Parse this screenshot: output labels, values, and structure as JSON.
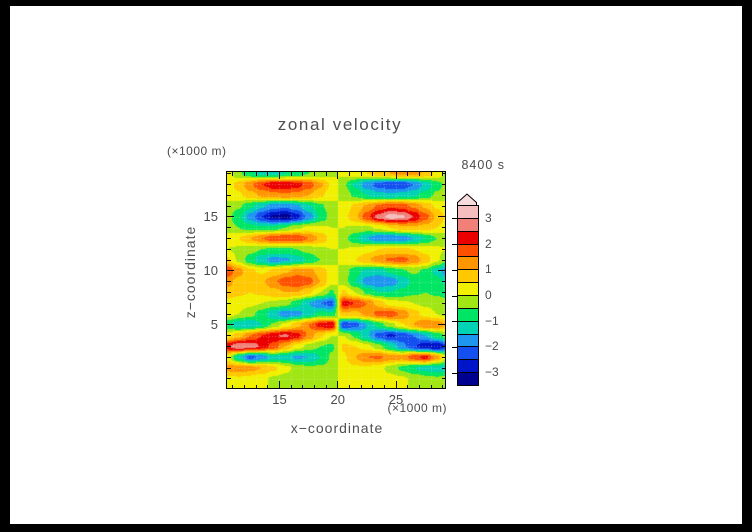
{
  "window": {
    "border_color": "#000000",
    "background": "#FFFFFF",
    "text_color": "#4A4A4A"
  },
  "time_label": "8400 s",
  "chart_data": {
    "type": "heatmap",
    "title": "zonal velocity",
    "xlabel": "x−coordinate",
    "ylabel": "z−coordinate",
    "x_unit_label": "(×1000 m)",
    "y_unit_label": "(×1000 m)",
    "xlim": [
      10.5,
      29.2
    ],
    "ylim": [
      -0.85,
      19.15
    ],
    "x_major_ticks": [
      15,
      20,
      25
    ],
    "y_major_ticks": [
      5,
      10,
      15
    ],
    "minor_tick_step": 1,
    "grid": "faint white dotted lines every 1 unit",
    "x": [
      10.5,
      11.5,
      12.5,
      13.5,
      14.5,
      15.5,
      16.5,
      17.5,
      18.5,
      19.5,
      20.5,
      21.5,
      22.5,
      23.5,
      24.5,
      25.5,
      26.5,
      27.5,
      28.5,
      29.5
    ],
    "y_rows": [
      19,
      18,
      17,
      16,
      15,
      14,
      13,
      12,
      11,
      10,
      9,
      8,
      7,
      6,
      5,
      4,
      3,
      2,
      1,
      0
    ],
    "values": [
      [
        0.3,
        -0.4,
        -0.9,
        -1.2,
        -1.2,
        -1.0,
        -0.8,
        -0.5,
        -0.3,
        -0.1,
        0.1,
        0.3,
        0.5,
        0.8,
        1.0,
        1.2,
        1.2,
        0.9,
        0.4,
        -0.3
      ],
      [
        0.2,
        0.7,
        1.4,
        2.0,
        2.4,
        2.4,
        2.2,
        1.8,
        1.1,
        0.4,
        -0.4,
        -1.1,
        -1.8,
        -2.2,
        -2.4,
        -2.4,
        -2.0,
        -1.4,
        -0.7,
        -0.2
      ],
      [
        0.1,
        0.4,
        0.8,
        1.1,
        1.3,
        1.4,
        1.3,
        1.0,
        0.6,
        0.2,
        -0.2,
        -0.6,
        -1.0,
        -1.3,
        -1.4,
        -1.3,
        -1.1,
        -0.8,
        -0.4,
        -0.1
      ],
      [
        -0.1,
        -0.4,
        -0.9,
        -1.4,
        -1.8,
        -1.9,
        -1.6,
        -1.1,
        -0.6,
        -0.2,
        0.2,
        0.6,
        1.1,
        1.6,
        1.9,
        1.8,
        1.4,
        0.9,
        0.4,
        0.1
      ],
      [
        -0.3,
        -0.9,
        -1.7,
        -2.5,
        -3.1,
        -3.2,
        -2.7,
        -1.8,
        -0.9,
        -0.3,
        0.3,
        0.9,
        1.8,
        2.7,
        3.2,
        3.1,
        2.5,
        1.7,
        0.9,
        0.3
      ],
      [
        -0.2,
        -0.5,
        -0.8,
        -0.9,
        -0.8,
        -0.5,
        -0.1,
        0.1,
        0.1,
        0.0,
        0.0,
        -0.1,
        -0.1,
        0.1,
        0.5,
        0.8,
        0.9,
        0.8,
        0.5,
        0.2
      ],
      [
        0.2,
        0.5,
        1.0,
        1.5,
        1.9,
        2.0,
        1.9,
        1.5,
        0.9,
        0.3,
        -0.3,
        -0.9,
        -1.5,
        -1.9,
        -2.0,
        -1.9,
        -1.5,
        -1.0,
        -0.5,
        -0.2
      ],
      [
        0.0,
        -0.1,
        -0.3,
        -0.5,
        -0.6,
        -0.6,
        -0.5,
        -0.3,
        -0.1,
        0.0,
        0.0,
        0.1,
        0.3,
        0.5,
        0.6,
        0.6,
        0.5,
        0.3,
        0.1,
        0.0
      ],
      [
        0.6,
        -0.1,
        -0.8,
        -1.4,
        -1.7,
        -1.6,
        -1.3,
        -0.9,
        -0.5,
        -0.2,
        0.2,
        0.5,
        0.9,
        1.3,
        1.6,
        1.7,
        1.4,
        0.8,
        0.1,
        -0.6
      ],
      [
        2.0,
        1.2,
        0.6,
        0.4,
        0.6,
        0.9,
        1.2,
        1.2,
        0.8,
        0.3,
        -0.3,
        -0.8,
        -1.2,
        -1.2,
        -0.9,
        -0.6,
        -0.4,
        -0.6,
        -1.2,
        -2.0
      ],
      [
        1.2,
        0.8,
        0.6,
        0.9,
        1.4,
        1.8,
        2.0,
        1.7,
        1.0,
        0.2,
        -0.2,
        -1.0,
        -1.7,
        -2.0,
        -1.8,
        -1.4,
        -0.9,
        -0.6,
        -0.8,
        -1.2
      ],
      [
        0.8,
        0.6,
        0.5,
        0.6,
        0.8,
        1.0,
        1.0,
        0.6,
        0.0,
        -0.6,
        0.6,
        0.0,
        -0.6,
        -1.0,
        -1.0,
        -0.8,
        -0.6,
        -0.5,
        -0.6,
        -0.8
      ],
      [
        0.3,
        0.2,
        0.1,
        0.0,
        -0.1,
        -0.3,
        -0.8,
        -1.5,
        -2.0,
        -2.2,
        2.2,
        2.0,
        1.5,
        0.8,
        0.3,
        0.1,
        0.0,
        -0.1,
        -0.2,
        -0.3
      ],
      [
        0.2,
        0.0,
        -0.3,
        -0.8,
        -1.4,
        -1.8,
        -1.7,
        -1.2,
        -0.8,
        -0.9,
        0.9,
        0.8,
        1.2,
        1.7,
        1.8,
        1.4,
        0.8,
        0.3,
        0.0,
        -0.2
      ],
      [
        -0.9,
        -1.4,
        -1.5,
        -1.0,
        -0.4,
        0.2,
        0.8,
        1.5,
        2.2,
        2.5,
        -2.5,
        -2.2,
        -1.5,
        -0.8,
        -0.2,
        0.4,
        1.0,
        1.5,
        1.4,
        0.9
      ],
      [
        0.3,
        0.8,
        1.5,
        2.0,
        2.4,
        2.6,
        2.2,
        1.4,
        0.6,
        0.0,
        0.0,
        -0.6,
        -1.4,
        -2.2,
        -2.6,
        -2.4,
        -2.0,
        -1.5,
        -0.8,
        -0.3
      ],
      [
        2.4,
        3.0,
        2.9,
        2.4,
        1.8,
        1.0,
        0.3,
        -0.2,
        -0.5,
        -0.6,
        0.6,
        0.5,
        0.2,
        -0.3,
        -1.0,
        -1.8,
        -2.4,
        -2.9,
        -3.0,
        -2.4
      ],
      [
        0.3,
        -1.2,
        -2.2,
        -1.8,
        -1.2,
        -1.3,
        -1.6,
        -1.5,
        -1.0,
        -0.4,
        0.4,
        1.0,
        1.5,
        1.6,
        1.3,
        1.2,
        1.8,
        2.2,
        1.2,
        -0.3
      ],
      [
        1.2,
        1.3,
        1.2,
        1.0,
        0.6,
        0.2,
        -0.2,
        -0.4,
        -0.4,
        -0.3,
        0.3,
        0.4,
        0.4,
        0.2,
        -0.2,
        -0.6,
        -1.0,
        -1.2,
        -1.3,
        -1.2
      ],
      [
        0.3,
        0.4,
        0.3,
        0.1,
        -0.1,
        -0.2,
        -0.3,
        -0.3,
        -0.2,
        -0.1,
        0.1,
        0.2,
        0.3,
        0.3,
        0.2,
        0.1,
        -0.1,
        -0.3,
        -0.4,
        -0.3
      ]
    ],
    "colorbar": {
      "tick_labels": [
        "3",
        "2",
        "1",
        "0",
        "−1",
        "−2",
        "−3"
      ],
      "level_min": -3.5,
      "level_max": 3.5,
      "level_step": 0.5,
      "colors_low_to_high": [
        "#000090",
        "#0014C8",
        "#1450F0",
        "#1E96F0",
        "#00D2B4",
        "#00E664",
        "#A0E614",
        "#F0F000",
        "#FFC800",
        "#FF9600",
        "#FF5000",
        "#EB0000",
        "#F08078",
        "#F5BEBE"
      ],
      "arrow_color": "#F6DCDC"
    }
  }
}
